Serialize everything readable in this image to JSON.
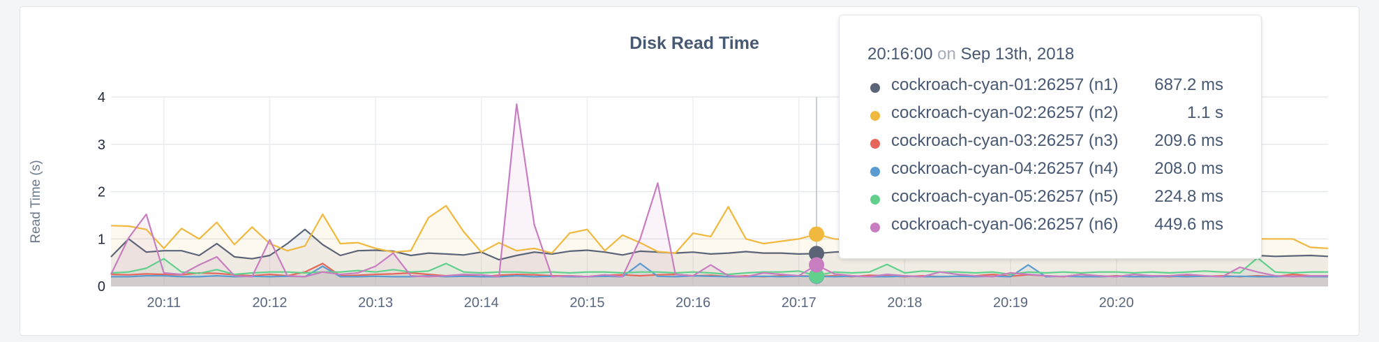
{
  "chart_data": {
    "type": "line",
    "title": "Disk Read Time",
    "ylabel": "Read Time (s)",
    "xlabel": "",
    "ylim": [
      0,
      4
    ],
    "yticks": [
      0,
      1,
      2,
      3,
      4
    ],
    "xticks": [
      "20:11",
      "20:12",
      "20:13",
      "20:14",
      "20:15",
      "20:16",
      "20:17",
      "20:18",
      "20:19",
      "20:20"
    ],
    "grid": true,
    "legend": "tooltip",
    "hover_point_index": 40,
    "series": [
      {
        "name": "cockroach-cyan-01:26257 (n1)",
        "color": "#5b6477",
        "display": "687.2 ms",
        "values": [
          0.62,
          1.0,
          0.72,
          0.75,
          0.75,
          0.65,
          0.9,
          0.62,
          0.58,
          0.65,
          0.9,
          1.2,
          0.88,
          0.65,
          0.75,
          0.76,
          0.74,
          0.65,
          0.7,
          0.68,
          0.66,
          0.72,
          0.56,
          0.65,
          0.72,
          0.68,
          0.74,
          0.76,
          0.72,
          0.66,
          0.74,
          0.72,
          0.7,
          0.72,
          0.68,
          0.7,
          0.73,
          0.7,
          0.7,
          0.68,
          0.69,
          0.72,
          0.74,
          0.72,
          0.7,
          0.72,
          0.73,
          0.7,
          0.72,
          0.68,
          0.72,
          0.7,
          0.72,
          0.7,
          0.68,
          0.7,
          0.72,
          0.7,
          0.68,
          0.72,
          0.7,
          0.66,
          0.68,
          0.7,
          0.68,
          0.65,
          0.63,
          0.64,
          0.65,
          0.63
        ]
      },
      {
        "name": "cockroach-cyan-02:26257 (n2)",
        "color": "#f0b83f",
        "display": "1.1 s",
        "values": [
          1.28,
          1.27,
          1.2,
          0.8,
          1.22,
          1.0,
          1.35,
          0.88,
          1.25,
          0.9,
          0.75,
          0.85,
          1.52,
          0.9,
          0.92,
          0.8,
          0.72,
          0.75,
          1.45,
          1.7,
          1.15,
          0.72,
          0.92,
          0.75,
          0.8,
          0.7,
          1.12,
          1.2,
          0.75,
          1.08,
          0.92,
          0.73,
          0.7,
          1.12,
          1.05,
          1.68,
          1.0,
          0.9,
          0.95,
          1.0,
          1.1,
          1.0,
          0.98,
          1.0,
          1.02,
          1.0,
          1.0,
          1.05,
          1.0,
          1.0,
          1.0,
          1.0,
          1.1,
          1.0,
          0.98,
          1.0,
          1.02,
          1.0,
          1.0,
          1.0,
          1.0,
          1.0,
          1.02,
          1.0,
          1.0,
          1.0,
          1.0,
          1.0,
          0.82,
          0.8
        ]
      },
      {
        "name": "cockroach-cyan-03:26257 (n3)",
        "color": "#e5675a",
        "display": "209.6 ms",
        "values": [
          0.25,
          0.24,
          0.26,
          0.25,
          0.24,
          0.28,
          0.27,
          0.24,
          0.22,
          0.25,
          0.22,
          0.3,
          0.48,
          0.22,
          0.23,
          0.25,
          0.26,
          0.28,
          0.25,
          0.22,
          0.24,
          0.2,
          0.23,
          0.25,
          0.24,
          0.22,
          0.22,
          0.2,
          0.23,
          0.24,
          0.22,
          0.24,
          0.25,
          0.22,
          0.23,
          0.2,
          0.22,
          0.2,
          0.22,
          0.22,
          0.21,
          0.22,
          0.2,
          0.23,
          0.22,
          0.2,
          0.22,
          0.2,
          0.21,
          0.22,
          0.25,
          0.21,
          0.24,
          0.22,
          0.2,
          0.25,
          0.2,
          0.22,
          0.2,
          0.22,
          0.2,
          0.22,
          0.21,
          0.22,
          0.2,
          0.22,
          0.2,
          0.25,
          0.22,
          0.22
        ]
      },
      {
        "name": "cockroach-cyan-04:26257 (n4)",
        "color": "#5a9bd1",
        "display": "208.0 ms",
        "values": [
          0.2,
          0.2,
          0.22,
          0.22,
          0.2,
          0.2,
          0.22,
          0.2,
          0.21,
          0.2,
          0.21,
          0.2,
          0.42,
          0.2,
          0.2,
          0.21,
          0.2,
          0.2,
          0.22,
          0.2,
          0.21,
          0.2,
          0.2,
          0.22,
          0.2,
          0.21,
          0.2,
          0.2,
          0.21,
          0.2,
          0.48,
          0.21,
          0.2,
          0.22,
          0.21,
          0.2,
          0.2,
          0.21,
          0.2,
          0.21,
          0.21,
          0.2,
          0.21,
          0.2,
          0.2,
          0.21,
          0.2,
          0.2,
          0.21,
          0.2,
          0.21,
          0.2,
          0.45,
          0.2,
          0.21,
          0.2,
          0.2,
          0.21,
          0.2,
          0.2,
          0.21,
          0.2,
          0.21,
          0.2,
          0.21,
          0.2,
          0.2,
          0.21,
          0.2,
          0.2
        ]
      },
      {
        "name": "cockroach-cyan-05:26257 (n5)",
        "color": "#61d08d",
        "display": "224.8 ms",
        "values": [
          0.28,
          0.3,
          0.38,
          0.58,
          0.3,
          0.27,
          0.35,
          0.25,
          0.28,
          0.3,
          0.3,
          0.28,
          0.3,
          0.3,
          0.33,
          0.3,
          0.35,
          0.3,
          0.32,
          0.48,
          0.3,
          0.28,
          0.3,
          0.3,
          0.28,
          0.3,
          0.28,
          0.3,
          0.3,
          0.28,
          0.3,
          0.3,
          0.28,
          0.3,
          0.28,
          0.25,
          0.28,
          0.3,
          0.3,
          0.32,
          0.22,
          0.3,
          0.28,
          0.3,
          0.46,
          0.28,
          0.32,
          0.3,
          0.3,
          0.28,
          0.3,
          0.25,
          0.3,
          0.28,
          0.3,
          0.28,
          0.3,
          0.3,
          0.28,
          0.3,
          0.28,
          0.3,
          0.32,
          0.3,
          0.28,
          0.6,
          0.3,
          0.28,
          0.3,
          0.3
        ]
      },
      {
        "name": "cockroach-cyan-06:26257 (n6)",
        "color": "#c87dc1",
        "display": "449.6 ms",
        "values": [
          0.25,
          1.02,
          1.52,
          0.28,
          0.25,
          0.45,
          0.62,
          0.22,
          0.2,
          0.98,
          0.22,
          0.2,
          0.3,
          0.25,
          0.28,
          0.42,
          0.7,
          0.22,
          0.2,
          0.22,
          0.25,
          0.24,
          0.2,
          3.85,
          1.3,
          0.2,
          0.22,
          0.2,
          0.24,
          0.2,
          1.0,
          2.18,
          0.25,
          0.22,
          0.45,
          0.22,
          0.2,
          0.28,
          0.25,
          0.22,
          0.45,
          0.26,
          0.22,
          0.2,
          0.25,
          0.22,
          0.2,
          0.3,
          0.25,
          0.22,
          0.2,
          0.28,
          0.25,
          0.22,
          0.2,
          0.25,
          0.22,
          0.2,
          0.25,
          0.22,
          0.22,
          0.25,
          0.22,
          0.2,
          0.4,
          0.3,
          0.22,
          0.2,
          0.22,
          0.22
        ]
      }
    ]
  },
  "tooltip": {
    "time": "20:16:00",
    "on": "on",
    "date": "Sep 13th, 2018"
  }
}
